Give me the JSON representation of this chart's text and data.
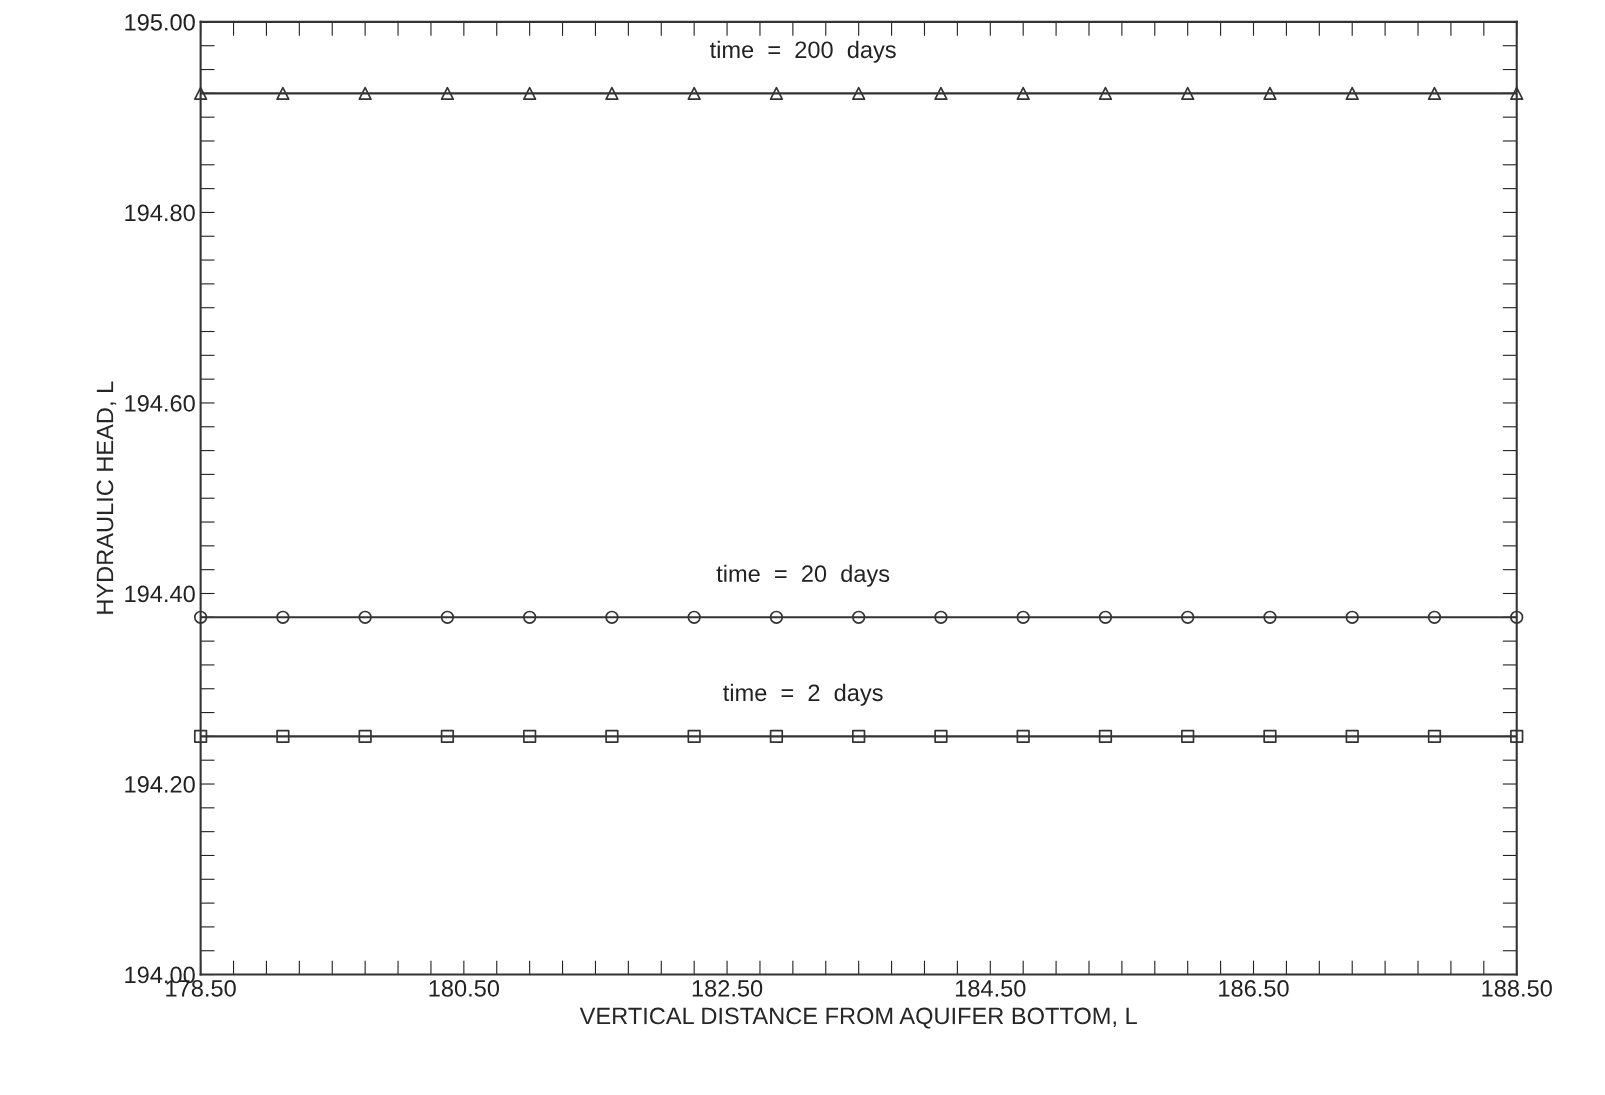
{
  "chart_data": {
    "type": "line",
    "xlabel": "VERTICAL DISTANCE FROM AQUIFER BOTTOM, L",
    "ylabel": "HYDRAULIC HEAD, L",
    "x": [
      178.5,
      179.125,
      179.75,
      180.375,
      181.0,
      181.625,
      182.25,
      182.875,
      183.5,
      184.125,
      184.75,
      185.375,
      186.0,
      186.625,
      187.25,
      187.875,
      188.5
    ],
    "series": [
      {
        "color": "#333333",
        "marker": "triangle",
        "values": [
          194.925,
          194.925,
          194.925,
          194.925,
          194.925,
          194.925,
          194.925,
          194.925,
          194.925,
          194.925,
          194.925,
          194.925,
          194.925,
          194.925,
          194.925,
          194.925,
          194.925
        ]
      },
      {
        "color": "#333333",
        "marker": "circle",
        "values": [
          194.375,
          194.375,
          194.375,
          194.375,
          194.375,
          194.375,
          194.375,
          194.375,
          194.375,
          194.375,
          194.375,
          194.375,
          194.375,
          194.375,
          194.375,
          194.375,
          194.375
        ]
      },
      {
        "color": "#333333",
        "marker": "square",
        "values": [
          194.25,
          194.25,
          194.25,
          194.25,
          194.25,
          194.25,
          194.25,
          194.25,
          194.25,
          194.25,
          194.25,
          194.25,
          194.25,
          194.25,
          194.25,
          194.25,
          194.25
        ]
      }
    ],
    "annotations": [
      "time  =  200  days",
      "time  =  20  days",
      "time  =  2  days"
    ],
    "xlim": [
      178.5,
      188.5
    ],
    "ylim": [
      194.0,
      195.0
    ],
    "xticks": [
      {
        "value": 178.5,
        "label": "178.50"
      },
      {
        "value": 178.75,
        "label": null
      },
      {
        "value": 179.0,
        "label": null
      },
      {
        "value": 179.25,
        "label": null
      },
      {
        "value": 179.5,
        "label": null
      },
      {
        "value": 179.75,
        "label": null
      },
      {
        "value": 180.0,
        "label": null
      },
      {
        "value": 180.25,
        "label": null
      },
      {
        "value": 180.5,
        "label": "180.50"
      },
      {
        "value": 180.75,
        "label": null
      },
      {
        "value": 181.0,
        "label": null
      },
      {
        "value": 181.25,
        "label": null
      },
      {
        "value": 181.5,
        "label": null
      },
      {
        "value": 181.75,
        "label": null
      },
      {
        "value": 182.0,
        "label": null
      },
      {
        "value": 182.25,
        "label": null
      },
      {
        "value": 182.5,
        "label": "182.50"
      },
      {
        "value": 182.75,
        "label": null
      },
      {
        "value": 183.0,
        "label": null
      },
      {
        "value": 183.25,
        "label": null
      },
      {
        "value": 183.5,
        "label": null
      },
      {
        "value": 183.75,
        "label": null
      },
      {
        "value": 184.0,
        "label": null
      },
      {
        "value": 184.25,
        "label": null
      },
      {
        "value": 184.5,
        "label": "184.50"
      },
      {
        "value": 184.75,
        "label": null
      },
      {
        "value": 185.0,
        "label": null
      },
      {
        "value": 185.25,
        "label": null
      },
      {
        "value": 185.5,
        "label": null
      },
      {
        "value": 185.75,
        "label": null
      },
      {
        "value": 186.0,
        "label": null
      },
      {
        "value": 186.25,
        "label": null
      },
      {
        "value": 186.5,
        "label": "186.50"
      },
      {
        "value": 186.75,
        "label": null
      },
      {
        "value": 187.0,
        "label": null
      },
      {
        "value": 187.25,
        "label": null
      },
      {
        "value": 187.5,
        "label": null
      },
      {
        "value": 187.75,
        "label": null
      },
      {
        "value": 188.0,
        "label": null
      },
      {
        "value": 188.25,
        "label": null
      },
      {
        "value": 188.5,
        "label": "188.50"
      }
    ],
    "yticks": [
      {
        "value": 194.0,
        "label": "194.00"
      },
      {
        "value": 194.025,
        "label": null
      },
      {
        "value": 194.05,
        "label": null
      },
      {
        "value": 194.075,
        "label": null
      },
      {
        "value": 194.1,
        "label": null
      },
      {
        "value": 194.125,
        "label": null
      },
      {
        "value": 194.15,
        "label": null
      },
      {
        "value": 194.175,
        "label": null
      },
      {
        "value": 194.2,
        "label": "194.20"
      },
      {
        "value": 194.225,
        "label": null
      },
      {
        "value": 194.25,
        "label": null
      },
      {
        "value": 194.275,
        "label": null
      },
      {
        "value": 194.3,
        "label": null
      },
      {
        "value": 194.325,
        "label": null
      },
      {
        "value": 194.35,
        "label": null
      },
      {
        "value": 194.375,
        "label": null
      },
      {
        "value": 194.4,
        "label": "194.40"
      },
      {
        "value": 194.425,
        "label": null
      },
      {
        "value": 194.45,
        "label": null
      },
      {
        "value": 194.475,
        "label": null
      },
      {
        "value": 194.5,
        "label": null
      },
      {
        "value": 194.525,
        "label": null
      },
      {
        "value": 194.55,
        "label": null
      },
      {
        "value": 194.575,
        "label": null
      },
      {
        "value": 194.6,
        "label": "194.60"
      },
      {
        "value": 194.625,
        "label": null
      },
      {
        "value": 194.65,
        "label": null
      },
      {
        "value": 194.675,
        "label": null
      },
      {
        "value": 194.7,
        "label": null
      },
      {
        "value": 194.725,
        "label": null
      },
      {
        "value": 194.75,
        "label": null
      },
      {
        "value": 194.775,
        "label": null
      },
      {
        "value": 194.8,
        "label": "194.80"
      },
      {
        "value": 194.825,
        "label": null
      },
      {
        "value": 194.85,
        "label": null
      },
      {
        "value": 194.875,
        "label": null
      },
      {
        "value": 194.9,
        "label": null
      },
      {
        "value": 194.925,
        "label": null
      },
      {
        "value": 194.95,
        "label": null
      },
      {
        "value": 194.975,
        "label": null
      },
      {
        "value": 195.0,
        "label": "195.00"
      }
    ],
    "grid": false,
    "line_style": "solid"
  }
}
